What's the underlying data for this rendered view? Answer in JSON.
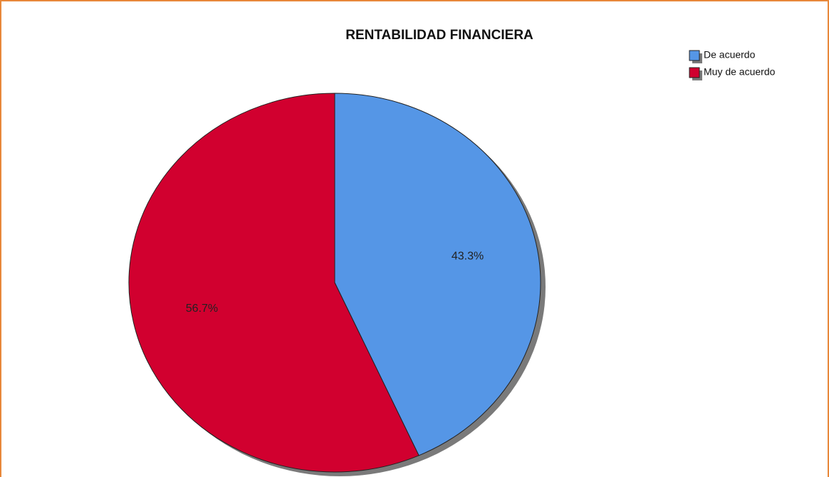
{
  "chart_data": {
    "type": "pie",
    "title": "RENTABILIDAD FINANCIERA",
    "categories": [
      "De acuerdo",
      "Muy de acuerdo"
    ],
    "values": [
      43.3,
      56.7
    ],
    "value_labels": [
      "43.3%",
      "56.7%"
    ],
    "colors": [
      "#5596e6",
      "#d1002f"
    ],
    "legend": "top-right"
  }
}
